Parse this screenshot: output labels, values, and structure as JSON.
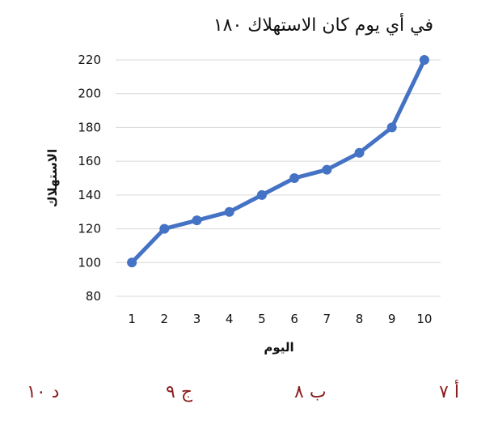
{
  "question": {
    "title": "في أي يوم كان الاستهلاك ١٨٠"
  },
  "chart_data": {
    "type": "line",
    "x": [
      1,
      2,
      3,
      4,
      5,
      6,
      7,
      8,
      9,
      10
    ],
    "series": [
      {
        "values": [
          100,
          120,
          125,
          130,
          140,
          150,
          155,
          165,
          180,
          220
        ],
        "color": "#4472c4"
      }
    ],
    "xlabel": "اليوم",
    "ylabel": "الاستهلاك",
    "ylim": [
      80,
      220
    ],
    "yticks": [
      80,
      100,
      120,
      140,
      160,
      180,
      200,
      220
    ],
    "xticks": [
      1,
      2,
      3,
      4,
      5,
      6,
      7,
      8,
      9,
      10
    ],
    "grid": true,
    "gridColor": "#d9d9d9"
  },
  "options": [
    {
      "label": "أ ٧"
    },
    {
      "label": "ب ٨"
    },
    {
      "label": "ج ٩"
    },
    {
      "label": "د ١٠"
    }
  ],
  "colors": {
    "line": "#4472c4",
    "options": "#8b1d1d"
  }
}
